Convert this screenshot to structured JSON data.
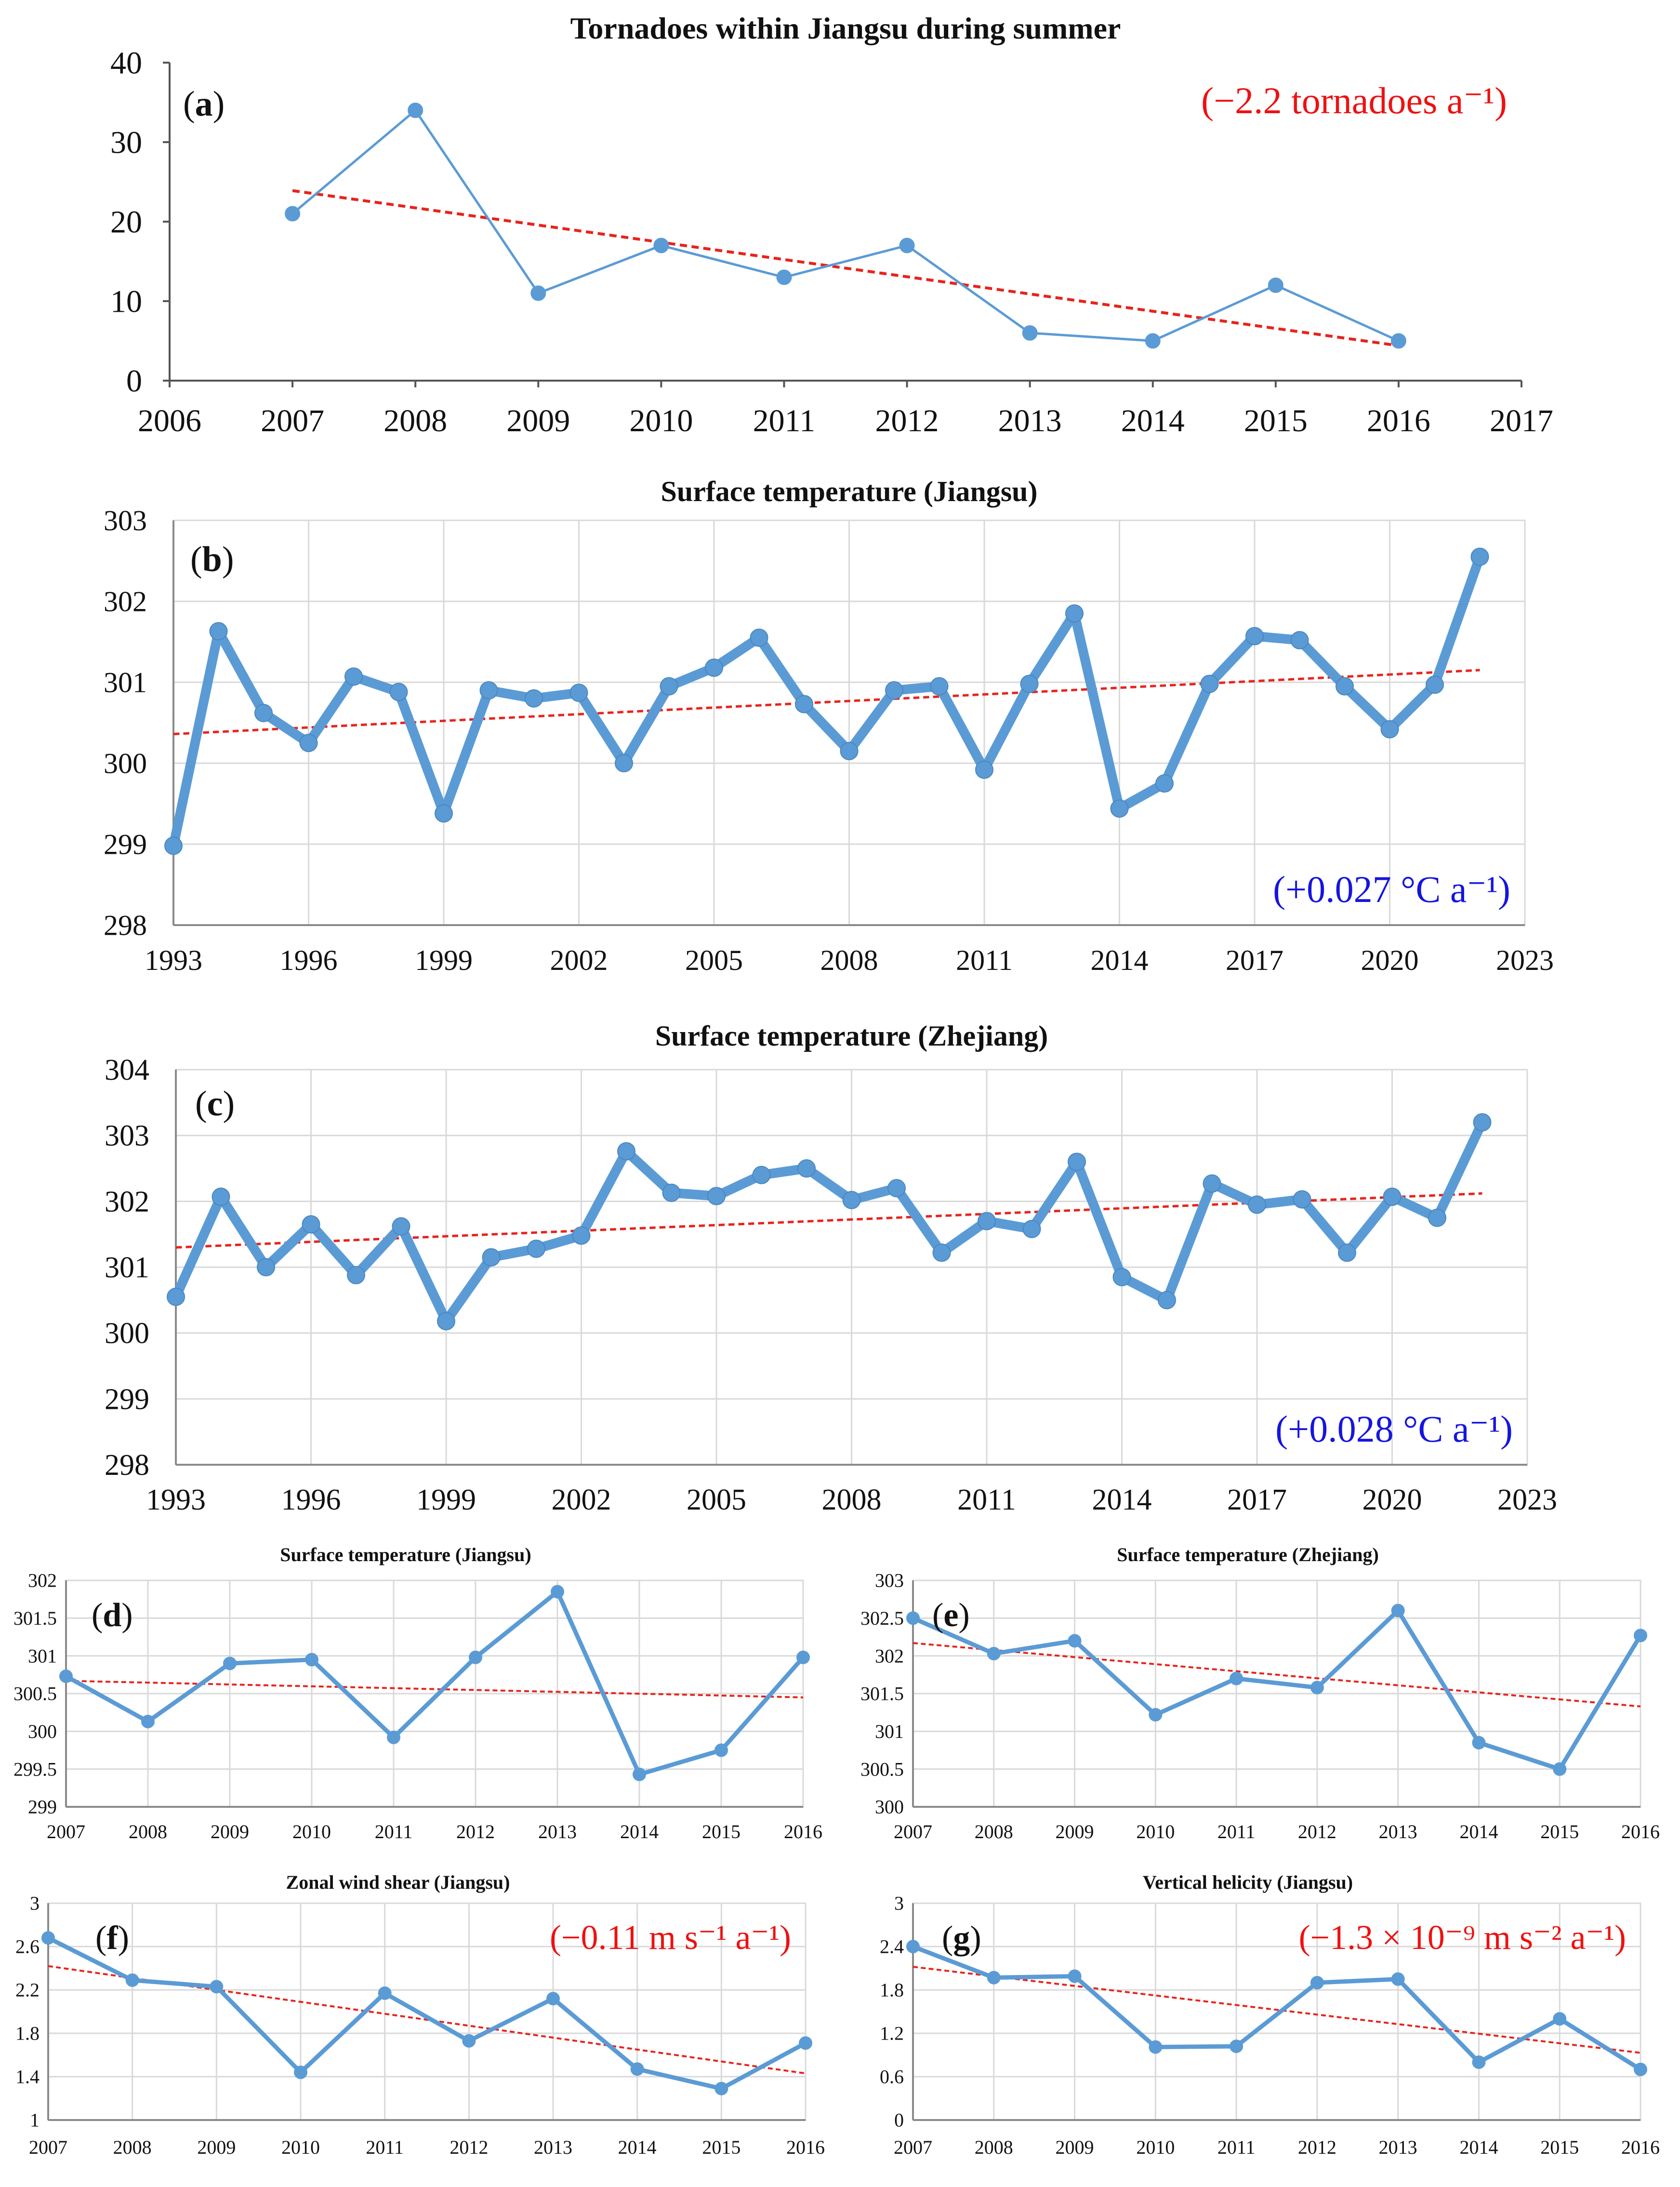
{
  "colors": {
    "series": "#5B9BD5",
    "trend": "#E8231C",
    "axis": "#555555",
    "grid": "#D9D9D9",
    "text": "#111111",
    "red": "#EE1111",
    "blue": "#1515E0"
  },
  "chart_data": [
    {
      "id": "a",
      "type": "line",
      "panel_label": "a",
      "title": "Tornadoes within Jiangsu during summer",
      "xlabel": "",
      "ylabel": "",
      "annotation": "(−2.2 tornadoes a⁻¹)",
      "annotation_color": "#EE1111",
      "annotation_pos": "top-right",
      "xlim": [
        2006,
        2017
      ],
      "ylim": [
        0,
        40
      ],
      "grid": false,
      "xticks": [
        2006,
        2007,
        2008,
        2009,
        2010,
        2011,
        2012,
        2013,
        2014,
        2015,
        2016,
        2017
      ],
      "yticks": [
        0,
        10,
        20,
        30,
        40
      ],
      "x": [
        2007,
        2008,
        2009,
        2010,
        2011,
        2012,
        2013,
        2014,
        2015,
        2016
      ],
      "series": [
        {
          "name": "Tornadoes",
          "values": [
            21,
            34,
            11,
            17,
            13,
            17,
            6,
            5,
            12,
            5
          ]
        }
      ],
      "trend": {
        "start": [
          2007,
          23.9
        ],
        "end": [
          2016,
          4.4
        ]
      },
      "style": "thin"
    },
    {
      "id": "b",
      "type": "line",
      "panel_label": "b",
      "title": "Surface temperature (Jiangsu)",
      "xlabel": "",
      "ylabel": "",
      "annotation": "(+0.027 °C a⁻¹)",
      "annotation_color": "#1515E0",
      "annotation_pos": "bottom-right",
      "xlim": [
        1993,
        2023
      ],
      "ylim": [
        298,
        303
      ],
      "grid": true,
      "xticks": [
        1993,
        1996,
        1999,
        2002,
        2005,
        2008,
        2011,
        2014,
        2017,
        2020,
        2023
      ],
      "yticks": [
        298,
        299,
        300,
        301,
        302,
        303
      ],
      "x": [
        1993,
        1994,
        1995,
        1996,
        1997,
        1998,
        1999,
        2000,
        2001,
        2002,
        2003,
        2004,
        2005,
        2006,
        2007,
        2008,
        2009,
        2010,
        2011,
        2012,
        2013,
        2014,
        2015,
        2016,
        2017,
        2018,
        2019,
        2020,
        2021,
        2022
      ],
      "series": [
        {
          "name": "Surface temperature",
          "values": [
            298.98,
            301.63,
            300.62,
            300.25,
            301.07,
            300.88,
            299.38,
            300.9,
            300.8,
            300.87,
            300.0,
            300.95,
            301.18,
            301.55,
            300.73,
            300.15,
            300.9,
            300.95,
            299.92,
            300.98,
            301.85,
            299.44,
            299.75,
            300.98,
            301.57,
            301.52,
            300.95,
            300.42,
            300.97,
            302.55
          ]
        }
      ],
      "trend": {
        "start": [
          1993,
          300.36
        ],
        "end": [
          2022,
          301.15
        ]
      },
      "style": "thick"
    },
    {
      "id": "c",
      "type": "line",
      "panel_label": "c",
      "title": "Surface temperature (Zhejiang)",
      "xlabel": "",
      "ylabel": "",
      "annotation": "(+0.028 °C a⁻¹)",
      "annotation_color": "#1515E0",
      "annotation_pos": "bottom-right",
      "xlim": [
        1993,
        2023
      ],
      "ylim": [
        298,
        304
      ],
      "grid": true,
      "xticks": [
        1993,
        1996,
        1999,
        2002,
        2005,
        2008,
        2011,
        2014,
        2017,
        2020,
        2023
      ],
      "yticks": [
        298,
        299,
        300,
        301,
        302,
        303,
        304
      ],
      "x": [
        1993,
        1994,
        1995,
        1996,
        1997,
        1998,
        1999,
        2000,
        2001,
        2002,
        2003,
        2004,
        2005,
        2006,
        2007,
        2008,
        2009,
        2010,
        2011,
        2012,
        2013,
        2014,
        2015,
        2016,
        2017,
        2018,
        2019,
        2020,
        2021,
        2022
      ],
      "series": [
        {
          "name": "Surface temperature",
          "values": [
            300.55,
            302.07,
            301.0,
            301.65,
            300.88,
            301.62,
            300.18,
            301.15,
            301.28,
            301.48,
            302.76,
            302.13,
            302.08,
            302.4,
            302.5,
            302.02,
            302.2,
            301.22,
            301.7,
            301.58,
            302.6,
            300.85,
            300.5,
            302.27,
            301.95,
            302.03,
            301.22,
            302.07,
            301.75,
            303.2
          ]
        }
      ],
      "trend": {
        "start": [
          1993,
          301.3
        ],
        "end": [
          2022,
          302.12
        ]
      },
      "style": "thick"
    },
    {
      "id": "d",
      "type": "line",
      "panel_label": "d",
      "title": "Surface temperature (Jiangsu)",
      "xlabel": "",
      "ylabel": "",
      "annotation": "",
      "xlim": [
        2007,
        2016
      ],
      "ylim": [
        299,
        302
      ],
      "grid": true,
      "xticks": [
        2007,
        2008,
        2009,
        2010,
        2011,
        2012,
        2013,
        2014,
        2015,
        2016
      ],
      "yticks": [
        299,
        299.5,
        300,
        300.5,
        301,
        301.5,
        302
      ],
      "x": [
        2007,
        2008,
        2009,
        2010,
        2011,
        2012,
        2013,
        2014,
        2015,
        2016
      ],
      "series": [
        {
          "name": "Surface temperature",
          "values": [
            300.73,
            300.13,
            300.9,
            300.95,
            299.92,
            300.98,
            301.85,
            299.43,
            299.75,
            300.98
          ]
        }
      ],
      "trend": {
        "start": [
          2007,
          300.67
        ],
        "end": [
          2016,
          300.45
        ]
      },
      "style": "medium"
    },
    {
      "id": "e",
      "type": "line",
      "panel_label": "e",
      "title": "Surface temperature (Zhejiang)",
      "xlabel": "",
      "ylabel": "",
      "annotation": "",
      "xlim": [
        2007,
        2016
      ],
      "ylim": [
        300,
        303
      ],
      "grid": true,
      "xticks": [
        2007,
        2008,
        2009,
        2010,
        2011,
        2012,
        2013,
        2014,
        2015,
        2016
      ],
      "yticks": [
        300,
        300.5,
        301,
        301.5,
        302,
        302.5,
        303
      ],
      "x": [
        2007,
        2008,
        2009,
        2010,
        2011,
        2012,
        2013,
        2014,
        2015,
        2016
      ],
      "series": [
        {
          "name": "Surface temperature",
          "values": [
            302.5,
            302.03,
            302.2,
            301.22,
            301.7,
            301.58,
            302.6,
            300.85,
            300.5,
            302.27
          ]
        }
      ],
      "trend": {
        "start": [
          2007,
          302.17
        ],
        "end": [
          2016,
          301.33
        ]
      },
      "style": "medium"
    },
    {
      "id": "f",
      "type": "line",
      "panel_label": "f",
      "title": "Zonal wind shear (Jiangsu)",
      "xlabel": "",
      "ylabel": "",
      "annotation": "(−0.11 m s⁻¹ a⁻¹)",
      "annotation_color": "#EE1111",
      "annotation_pos": "top-right",
      "xlim": [
        2007,
        2016
      ],
      "ylim": [
        1,
        3
      ],
      "grid": true,
      "xticks": [
        2007,
        2008,
        2009,
        2010,
        2011,
        2012,
        2013,
        2014,
        2015,
        2016
      ],
      "yticks": [
        1,
        1.4,
        1.8,
        2.2,
        2.6,
        3
      ],
      "x": [
        2007,
        2008,
        2009,
        2010,
        2011,
        2012,
        2013,
        2014,
        2015,
        2016
      ],
      "series": [
        {
          "name": "Zonal wind shear",
          "values": [
            2.68,
            2.29,
            2.23,
            1.44,
            2.17,
            1.73,
            2.12,
            1.47,
            1.29,
            1.71
          ]
        }
      ],
      "trend": {
        "start": [
          2007,
          2.42
        ],
        "end": [
          2016,
          1.43
        ]
      },
      "style": "medium"
    },
    {
      "id": "g",
      "type": "line",
      "panel_label": "g",
      "title": "Vertical helicity (Jiangsu)",
      "xlabel": "",
      "ylabel": "",
      "annotation": "(−1.3 × 10⁻⁹ m s⁻² a⁻¹)",
      "annotation_color": "#EE1111",
      "annotation_pos": "top-right",
      "xlim": [
        2007,
        2016
      ],
      "ylim": [
        0,
        3
      ],
      "grid": true,
      "xticks": [
        2007,
        2008,
        2009,
        2010,
        2011,
        2012,
        2013,
        2014,
        2015,
        2016
      ],
      "yticks": [
        0,
        0.6,
        1.2,
        1.8,
        2.4,
        3
      ],
      "x": [
        2007,
        2008,
        2009,
        2010,
        2011,
        2012,
        2013,
        2014,
        2015,
        2016
      ],
      "series": [
        {
          "name": "Vertical helicity",
          "values": [
            2.4,
            1.97,
            1.99,
            1.01,
            1.02,
            1.9,
            1.95,
            0.8,
            1.4,
            0.7
          ]
        }
      ],
      "trend": {
        "start": [
          2007,
          2.12
        ],
        "end": [
          2016,
          0.93
        ]
      },
      "style": "medium"
    }
  ]
}
